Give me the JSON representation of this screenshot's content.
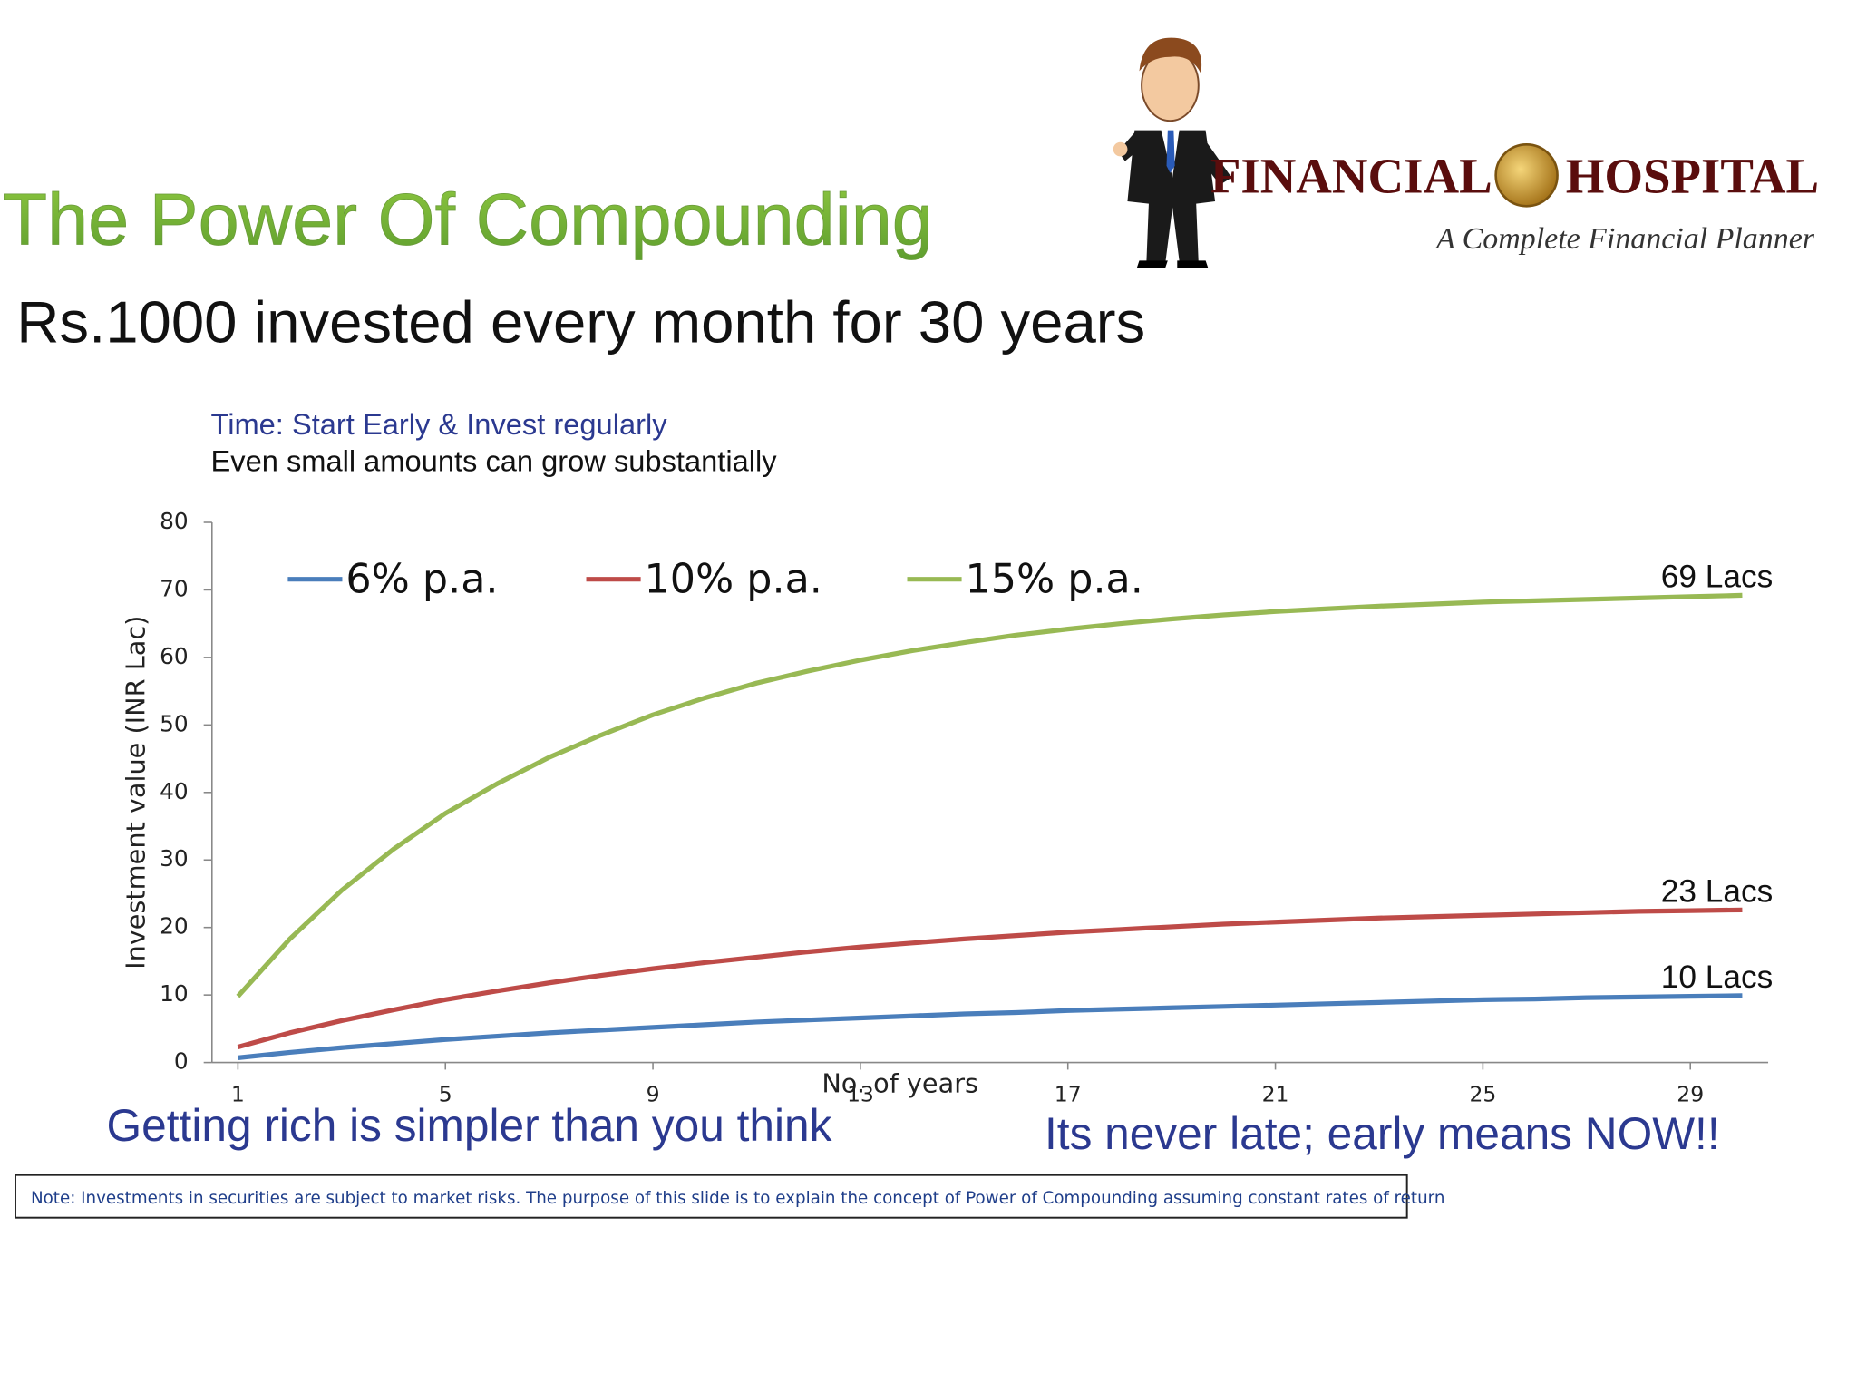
{
  "header": {
    "title": "The Power Of Compounding",
    "subtitle": "Rs.1000 invested every month for 30 years",
    "logo_name_1": "FINANCIAL",
    "logo_name_2": "HOSPITAL",
    "logo_tagline": "A Complete Financial Planner"
  },
  "chart_data": {
    "type": "line",
    "title": "Time: Start Early & Invest regularly",
    "subtitle": "Even small amounts can grow substantially",
    "x_label": "No. of years",
    "y_label": "Investment value  (INR Lac)",
    "x": [
      1,
      2,
      3,
      4,
      5,
      6,
      7,
      8,
      9,
      10,
      11,
      12,
      13,
      14,
      15,
      16,
      17,
      18,
      19,
      20,
      21,
      22,
      23,
      24,
      25,
      26,
      27,
      28,
      29,
      30
    ],
    "xlim": [
      0.5,
      30.5
    ],
    "xticks": [
      1,
      5,
      9,
      13,
      17,
      21,
      25,
      29
    ],
    "ylim": [
      0,
      80
    ],
    "yticks": [
      0,
      10,
      20,
      30,
      40,
      50,
      60,
      70,
      80
    ],
    "legend": "top",
    "series": [
      {
        "name": "6% p.a.",
        "color": "#4a7ebb",
        "label": "10 Lacs",
        "values": [
          0.7,
          1.5,
          2.2,
          2.8,
          3.4,
          3.9,
          4.4,
          4.8,
          5.2,
          5.6,
          6.0,
          6.3,
          6.6,
          6.9,
          7.2,
          7.4,
          7.7,
          7.9,
          8.1,
          8.3,
          8.5,
          8.7,
          8.9,
          9.1,
          9.3,
          9.4,
          9.6,
          9.7,
          9.8,
          9.9
        ]
      },
      {
        "name": "10% p.a.",
        "color": "#be4b48",
        "label": "23 Lacs",
        "values": [
          2.3,
          4.4,
          6.2,
          7.8,
          9.3,
          10.6,
          11.8,
          12.9,
          13.9,
          14.8,
          15.6,
          16.4,
          17.1,
          17.7,
          18.3,
          18.8,
          19.3,
          19.7,
          20.1,
          20.5,
          20.8,
          21.1,
          21.4,
          21.6,
          21.8,
          22.0,
          22.2,
          22.4,
          22.5,
          22.6
        ]
      },
      {
        "name": "15% p.a.",
        "color": "#98b954",
        "label": "69 Lacs",
        "values": [
          9.8,
          18.3,
          25.5,
          31.6,
          36.9,
          41.3,
          45.2,
          48.5,
          51.5,
          54.0,
          56.2,
          58.0,
          59.6,
          61.0,
          62.2,
          63.3,
          64.2,
          65.0,
          65.7,
          66.3,
          66.8,
          67.2,
          67.6,
          67.9,
          68.2,
          68.4,
          68.6,
          68.8,
          69.0,
          69.2
        ]
      }
    ]
  },
  "captions": {
    "left": "Getting rich is simpler than you think",
    "right": "Its never late; early means NOW!!"
  },
  "note": "Note: Investments in securities are subject to market risks. The purpose of this slide is to explain the concept of Power of Compounding assuming constant rates of return"
}
